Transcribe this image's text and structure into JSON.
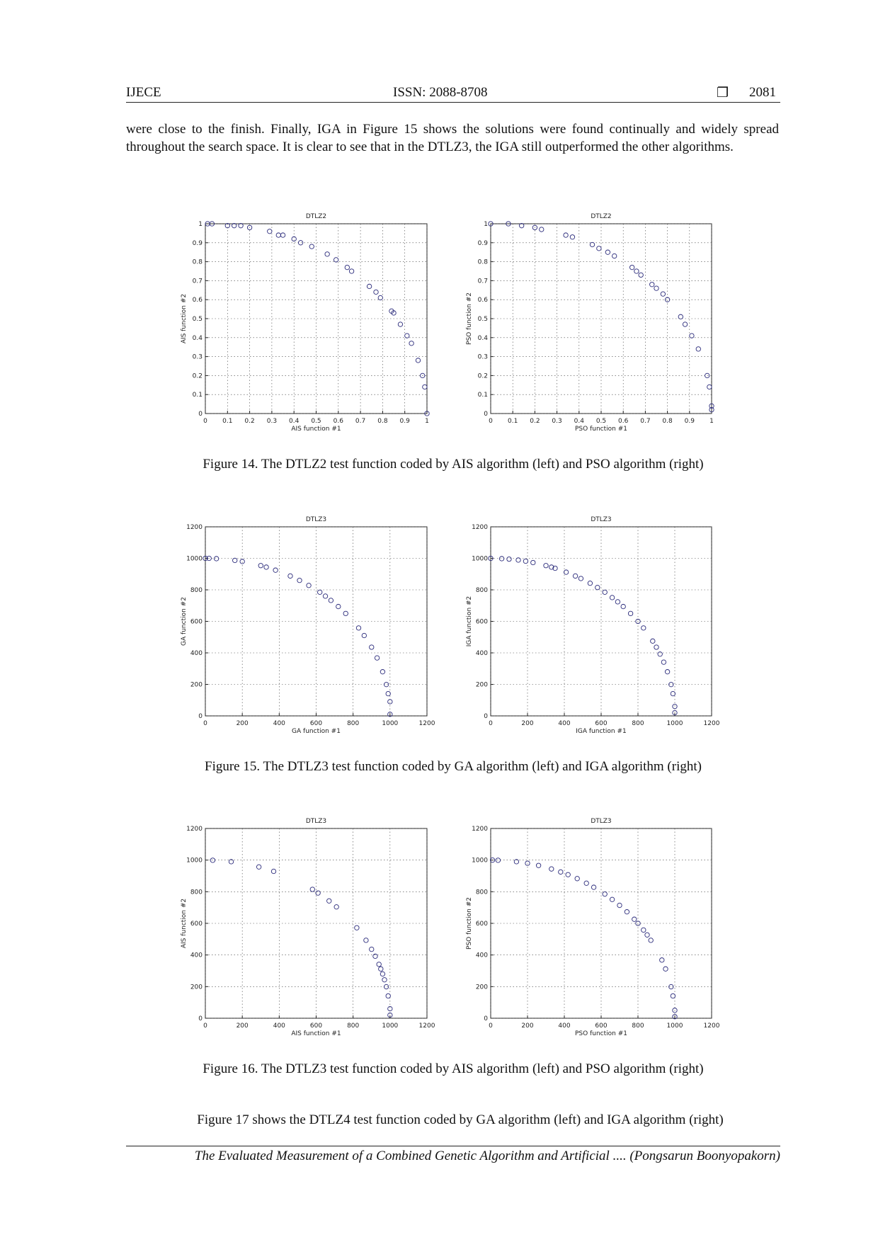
{
  "header": {
    "left": "IJECE",
    "center": "ISSN: 2088-8708",
    "symbol": "❐",
    "right": "2081"
  },
  "paragraph": "were close to the finish. Finally, IGA in Figure 15 shows the solutions were found continually and widely spread throughout the search space. It is clear to see that in the DTLZ3, the IGA still outperformed the other algorithms.",
  "captions": [
    "Figure 14. The DTLZ2 test function coded by AIS algorithm (left) and PSO algorithm (right)",
    "Figure 15. The DTLZ3 test function coded by GA algorithm (left) and IGA algorithm (right)",
    "Figure 16. The DTLZ3 test function coded by AIS algorithm (left) and PSO algorithm (right)"
  ],
  "closing": "Figure 17 shows the DTLZ4 test function coded by GA algorithm (left) and IGA algorithm (right)",
  "footer": {
    "title": "The Evaluated Measurement of a Combined Genetic Algorithm and Artificial",
    "author": ".... (Pongsarun Boonyopakorn)"
  },
  "chart_data": [
    {
      "type": "scatter",
      "title": "DTLZ2",
      "x_label": "AIS function #1",
      "y_label": "AIS function #2",
      "color": "#2a2a7a",
      "grid": true,
      "xlim": [
        0,
        1
      ],
      "ylim": [
        0,
        1
      ],
      "xticks": [
        0,
        0.1,
        0.2,
        0.3,
        0.4,
        0.5,
        0.6,
        0.7,
        0.8,
        0.9,
        1
      ],
      "yticks": [
        0,
        0.1,
        0.2,
        0.3,
        0.4,
        0.5,
        0.6,
        0.7,
        0.8,
        0.9,
        1
      ],
      "x": [
        0.01,
        0.03,
        0.1,
        0.13,
        0.16,
        0.2,
        0.29,
        0.33,
        0.35,
        0.4,
        0.43,
        0.48,
        0.55,
        0.59,
        0.64,
        0.66,
        0.74,
        0.77,
        0.79,
        0.84,
        0.85,
        0.88,
        0.91,
        0.93,
        0.96,
        0.98,
        0.99,
        1.0
      ],
      "values": [
        1.0,
        1.0,
        0.99,
        0.99,
        0.99,
        0.98,
        0.96,
        0.94,
        0.94,
        0.92,
        0.9,
        0.88,
        0.84,
        0.81,
        0.77,
        0.75,
        0.67,
        0.64,
        0.61,
        0.54,
        0.53,
        0.47,
        0.41,
        0.37,
        0.28,
        0.2,
        0.14,
        0.0
      ]
    },
    {
      "type": "scatter",
      "title": "DTLZ2",
      "x_label": "PSO function #1",
      "y_label": "PSO function #2",
      "color": "#2a2a7a",
      "grid": true,
      "xlim": [
        0,
        1
      ],
      "ylim": [
        0,
        1
      ],
      "xticks": [
        0,
        0.1,
        0.2,
        0.3,
        0.4,
        0.5,
        0.6,
        0.7,
        0.8,
        0.9,
        1
      ],
      "yticks": [
        0,
        0.1,
        0.2,
        0.3,
        0.4,
        0.5,
        0.6,
        0.7,
        0.8,
        0.9,
        1
      ],
      "x": [
        0.0,
        0.08,
        0.14,
        0.2,
        0.23,
        0.34,
        0.37,
        0.46,
        0.49,
        0.53,
        0.56,
        0.64,
        0.66,
        0.68,
        0.73,
        0.75,
        0.78,
        0.8,
        0.86,
        0.88,
        0.91,
        0.94,
        0.98,
        0.99,
        1.0,
        1.0
      ],
      "values": [
        1.0,
        1.0,
        0.99,
        0.98,
        0.97,
        0.94,
        0.93,
        0.89,
        0.87,
        0.85,
        0.83,
        0.77,
        0.75,
        0.73,
        0.68,
        0.66,
        0.63,
        0.6,
        0.51,
        0.47,
        0.41,
        0.34,
        0.2,
        0.14,
        0.04,
        0.02
      ]
    },
    {
      "type": "scatter",
      "title": "DTLZ3",
      "x_label": "GA function #1",
      "y_label": "GA function #2",
      "color": "#2a2a7a",
      "grid": true,
      "xlim": [
        0,
        1200
      ],
      "ylim": [
        0,
        1200
      ],
      "xticks": [
        0,
        200,
        400,
        600,
        800,
        1000,
        1200
      ],
      "yticks": [
        0,
        200,
        400,
        600,
        800,
        1000,
        1200
      ],
      "x": [
        0,
        20,
        60,
        160,
        200,
        300,
        330,
        380,
        460,
        510,
        560,
        620,
        650,
        680,
        720,
        760,
        830,
        860,
        900,
        930,
        960,
        980,
        990,
        1000,
        1000
      ],
      "values": [
        1000,
        1000,
        998,
        987,
        980,
        954,
        944,
        925,
        888,
        860,
        828,
        785,
        760,
        733,
        694,
        650,
        558,
        510,
        436,
        368,
        280,
        199,
        141,
        90,
        10
      ]
    },
    {
      "type": "scatter",
      "title": "DTLZ3",
      "x_label": "IGA function #1",
      "y_label": "IGA function #2",
      "color": "#2a2a7a",
      "grid": true,
      "xlim": [
        0,
        1200
      ],
      "ylim": [
        0,
        1200
      ],
      "xticks": [
        0,
        200,
        400,
        600,
        800,
        1000,
        1200
      ],
      "yticks": [
        0,
        200,
        400,
        600,
        800,
        1000,
        1200
      ],
      "x": [
        0,
        60,
        100,
        150,
        190,
        230,
        300,
        330,
        350,
        410,
        460,
        490,
        540,
        580,
        620,
        660,
        690,
        720,
        760,
        800,
        830,
        880,
        900,
        920,
        940,
        960,
        980,
        990,
        1000,
        1000
      ],
      "values": [
        1000,
        998,
        995,
        989,
        982,
        973,
        954,
        944,
        937,
        912,
        888,
        872,
        842,
        815,
        785,
        751,
        724,
        694,
        650,
        600,
        558,
        475,
        436,
        392,
        341,
        280,
        199,
        141,
        60,
        20
      ]
    },
    {
      "type": "scatter",
      "title": "DTLZ3",
      "x_label": "AIS function #1",
      "y_label": "AIS function #2",
      "color": "#2a2a7a",
      "grid": true,
      "xlim": [
        0,
        1200
      ],
      "ylim": [
        0,
        1200
      ],
      "xticks": [
        0,
        200,
        400,
        600,
        800,
        1000,
        1200
      ],
      "yticks": [
        0,
        200,
        400,
        600,
        800,
        1000,
        1200
      ],
      "x": [
        40,
        140,
        290,
        370,
        580,
        610,
        670,
        710,
        820,
        870,
        900,
        920,
        940,
        950,
        960,
        970,
        980,
        990,
        1000,
        1000
      ],
      "values": [
        999,
        990,
        957,
        929,
        815,
        792,
        742,
        704,
        572,
        493,
        436,
        392,
        341,
        312,
        280,
        243,
        199,
        141,
        60,
        20
      ]
    },
    {
      "type": "scatter",
      "title": "DTLZ3",
      "x_label": "PSO function #1",
      "y_label": "PSO function #2",
      "color": "#2a2a7a",
      "grid": true,
      "xlim": [
        0,
        1200
      ],
      "ylim": [
        0,
        1200
      ],
      "xticks": [
        0,
        200,
        400,
        600,
        800,
        1000,
        1200
      ],
      "yticks": [
        0,
        200,
        400,
        600,
        800,
        1000,
        1200
      ],
      "x": [
        10,
        40,
        140,
        200,
        260,
        330,
        380,
        420,
        470,
        520,
        560,
        620,
        660,
        700,
        740,
        780,
        800,
        830,
        850,
        870,
        930,
        950,
        980,
        990,
        1000,
        1000
      ],
      "values": [
        1000,
        999,
        990,
        980,
        966,
        944,
        925,
        908,
        883,
        854,
        828,
        785,
        751,
        714,
        673,
        626,
        600,
        558,
        527,
        493,
        368,
        312,
        199,
        141,
        50,
        10
      ]
    }
  ]
}
